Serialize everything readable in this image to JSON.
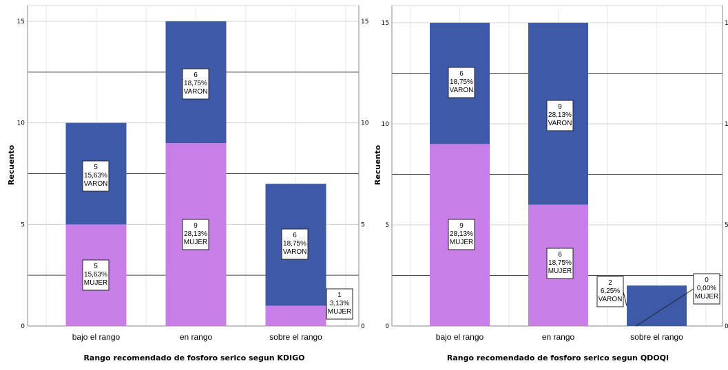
{
  "chart_data": [
    {
      "type": "bar",
      "stacked": true,
      "xlabel": "Rango recomendado de fosforo serico segun KDIGO",
      "ylabel": "Recuento",
      "ylim": [
        0,
        16
      ],
      "y_ticks": [
        "0",
        "5",
        "10",
        "15"
      ],
      "categories": [
        "bajo el rango",
        "en rango",
        "sobre el rango"
      ],
      "colors": {
        "MUJER": "#c77ee6",
        "VARON": "#3d59a7"
      },
      "series": [
        {
          "name": "MUJER",
          "values": [
            5,
            9,
            1
          ],
          "labels": [
            [
              "5",
              "15,63%",
              "MUJER"
            ],
            [
              "9",
              "28,13%",
              "MUJER"
            ],
            [
              "1",
              "3,13%",
              "MUJER"
            ]
          ]
        },
        {
          "name": "VARON",
          "values": [
            5,
            6,
            6
          ],
          "labels": [
            [
              "5",
              "15,63%",
              "VARON"
            ],
            [
              "6",
              "18,75%",
              "VARON"
            ],
            [
              "6",
              "18,75%",
              "VARON"
            ]
          ]
        }
      ]
    },
    {
      "type": "bar",
      "stacked": true,
      "xlabel": "Rango recomendado de fosforo serico segun QDOQI",
      "ylabel": "Recuento",
      "ylim": [
        0,
        16
      ],
      "y_ticks": [
        "0",
        "5",
        "10",
        "15"
      ],
      "categories": [
        "bajo el rango",
        "en rango",
        "sobre el rango"
      ],
      "colors": {
        "MUJER": "#c77ee6",
        "VARON": "#3d59a7"
      },
      "series": [
        {
          "name": "MUJER",
          "values": [
            9,
            6,
            0
          ],
          "labels": [
            [
              "9",
              "28,13%",
              "MUJER"
            ],
            [
              "6",
              "18,75%",
              "MUJER"
            ],
            [
              "0",
              "0,00%",
              "MUJER"
            ]
          ]
        },
        {
          "name": "VARON",
          "values": [
            6,
            9,
            2
          ],
          "labels": [
            [
              "6",
              "18,75%",
              "VARON"
            ],
            [
              "9",
              "28,13%",
              "VARON"
            ],
            [
              "2",
              "6,25%",
              "VARON"
            ]
          ]
        }
      ]
    }
  ]
}
